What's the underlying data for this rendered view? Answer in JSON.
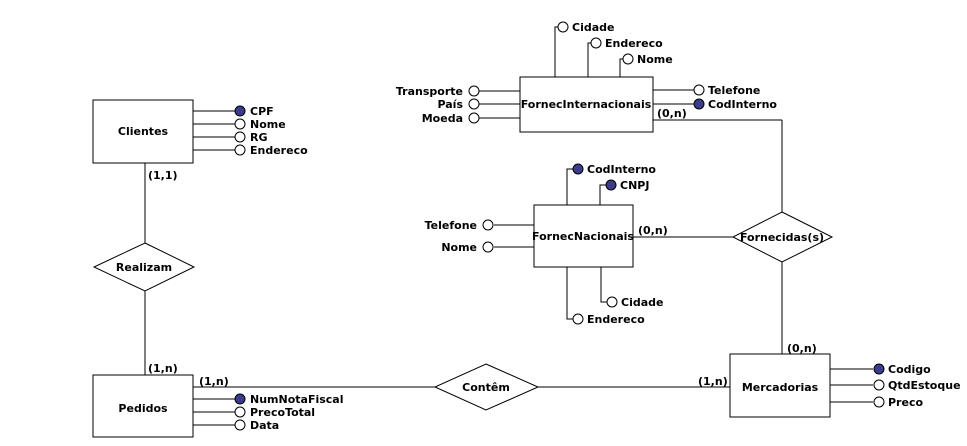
{
  "entities": {
    "clientes": "Clientes",
    "pedidos": "Pedidos",
    "fornec_internacionais": "FornecInternacionais",
    "fornec_nacionais": "FornecNacionais",
    "mercadorias": "Mercadorias"
  },
  "relationships": {
    "realizam": "Realizam",
    "contem": "Contêm",
    "fornecidas": "Fornecidas(s)"
  },
  "attributes": {
    "clientes": [
      "CPF",
      "Nome",
      "RG",
      "Endereco"
    ],
    "pedidos": [
      "NumNotaFiscal",
      "PrecoTotal",
      "Data"
    ],
    "fornec_internacionais_top": [
      "Cidade",
      "Endereco",
      "Nome"
    ],
    "fornec_internacionais_left": [
      "Transporte",
      "País",
      "Moeda"
    ],
    "fornec_internacionais_right": [
      "Telefone",
      "CodInterno"
    ],
    "fornec_nacionais_top": [
      "CodInterno",
      "CNPJ"
    ],
    "fornec_nacionais_left": [
      "Telefone",
      "Nome"
    ],
    "fornec_nacionais_bottom": [
      "Cidade",
      "Endereco"
    ],
    "mercadorias": [
      "Codigo",
      "QtdEstoque",
      "Preco"
    ]
  },
  "cardinalities": {
    "clientes_realizam": "(1,1)",
    "pedidos_realizam": "(1,n)",
    "pedidos_contem": "(1,n)",
    "mercadorias_contem": "(1,n)",
    "fornec_int_fornecidas": "(0,n)",
    "fornec_nac_fornecidas": "(0,n)",
    "mercadorias_fornecidas": "(0,n)"
  },
  "colors": {
    "key_attribute_fill": "#3c3c8c",
    "attribute_fill": "#ffffff",
    "stroke": "#000000"
  }
}
